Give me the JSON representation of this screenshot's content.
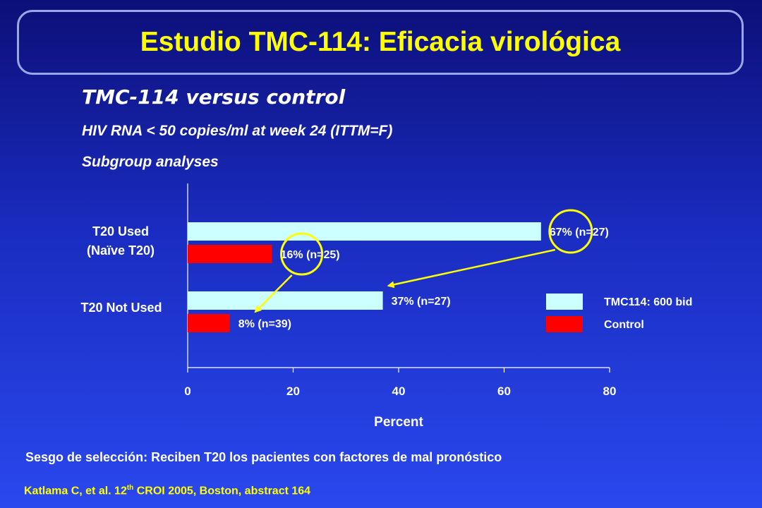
{
  "slide": {
    "title": "Estudio TMC-114: Eficacia virológica",
    "subtitle": "TMC-114 versus  control",
    "line2": "HIV RNA < 50 copies/ml at week 24 (ITTM=F)",
    "line3": "Subgroup analyses",
    "note": "Sesgo de selección: Reciben T20 los pacientes con factores de mal pronóstico",
    "citation_pre": "Katlama C, et al. 12",
    "citation_sup": "th",
    "citation_post": " CROI 2005, Boston, abstract 164"
  },
  "colors": {
    "tmc": "#ccffff",
    "control": "#ff0000",
    "arrow": "#ffff00",
    "title": "#ffff00"
  },
  "chart_data": {
    "type": "bar",
    "orientation": "horizontal",
    "categories": [
      "T20 Used\n(Naïve T20)",
      "T20 Not Used"
    ],
    "category_lines": [
      [
        "T20 Used",
        "(Naïve T20)"
      ],
      [
        "T20 Not Used"
      ]
    ],
    "series": [
      {
        "name": "TMC114: 600 bid",
        "values": [
          67,
          37
        ],
        "labels": [
          "67% (n=27)",
          "37% (n=27)"
        ]
      },
      {
        "name": "Control",
        "values": [
          16,
          8
        ],
        "labels": [
          "16% (n=25)",
          "8% (n=39)"
        ]
      }
    ],
    "xlabel": "Percent",
    "xlim": [
      0,
      80
    ],
    "xticks": [
      0,
      20,
      40,
      60,
      80
    ],
    "legend": "right",
    "annotations": "circles on 67% and 16% labels with arrows showing crossover of effect"
  }
}
